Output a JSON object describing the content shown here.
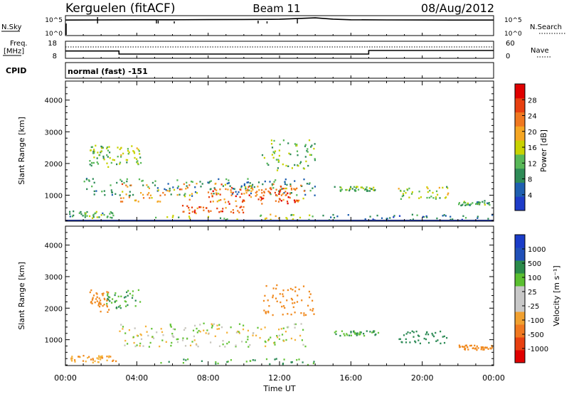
{
  "header": {
    "station": "Kerguelen (fitACF)",
    "beam": "Beam 11",
    "date": "08/Aug/2012"
  },
  "noise_panel": {
    "left_label": "N.Sky",
    "right_label": "N.Search",
    "left_ticks": [
      "10^5",
      "10^0"
    ],
    "right_ticks": [
      "10^5",
      "10^0"
    ]
  },
  "freq_panel": {
    "left_label_1": "Freq.",
    "left_label_2": "[MHz]",
    "right_label": "Nave",
    "left_ticks": [
      "18",
      "8"
    ],
    "right_ticks": [
      "60",
      "0"
    ]
  },
  "cpid": {
    "label": "CPID",
    "value": "normal (fast) -151"
  },
  "colors": {
    "power_scale": [
      "#1e3cc8",
      "#1f5fb0",
      "#2e8b57",
      "#58b858",
      "#c8d200",
      "#f5a623",
      "#f07820",
      "#e84010",
      "#e00000"
    ],
    "velocity_scale": [
      "#1a3cc8",
      "#2050b8",
      "#2a8a4a",
      "#5abf30",
      "#c8c8c8",
      "#c8c8c8",
      "#f0a030",
      "#f07820",
      "#e84010",
      "#e00000"
    ],
    "velocity_bg": "#c8c6be"
  },
  "chart_data": [
    {
      "type": "line",
      "name": "noise",
      "x_range": [
        0,
        24
      ],
      "y_scale": "log",
      "ylim": [
        1,
        100000
      ],
      "series": [
        {
          "name": "N.Sky",
          "x": [
            0,
            2,
            4,
            6,
            8,
            10,
            12,
            13,
            14,
            15,
            16,
            18,
            20,
            22,
            24
          ],
          "y": [
            10000,
            11000,
            12000,
            12000,
            13000,
            14000,
            16000,
            25000,
            40000,
            18000,
            12000,
            11000,
            10500,
            10000,
            10000
          ]
        }
      ]
    },
    {
      "type": "line",
      "name": "frequency",
      "x_range": [
        0,
        24
      ],
      "series": [
        {
          "name": "Freq",
          "x": [
            0,
            3.0,
            3.0,
            17.0,
            17.0,
            24
          ],
          "y": [
            12.3,
            12.3,
            10.5,
            10.5,
            12.6,
            12.6
          ]
        }
      ],
      "ylim": [
        8,
        18
      ]
    },
    {
      "type": "heatmap",
      "name": "power",
      "xlabel": "Time UT",
      "ylabel": "Slant Range [km]",
      "x_ticks": [
        "00:00",
        "04:00",
        "08:00",
        "12:00",
        "16:00",
        "20:00",
        "00:00"
      ],
      "x_tick_values": [
        0,
        4,
        8,
        12,
        16,
        20,
        24
      ],
      "y_ticks": [
        "1000",
        "2000",
        "3000",
        "4000"
      ],
      "y_tick_values": [
        1000,
        2000,
        3000,
        4000
      ],
      "ylim": [
        180,
        4600
      ],
      "xlim": [
        0,
        24
      ],
      "colorbar": {
        "label": "Power [dB]",
        "ticks": [
          "4",
          "8",
          "12",
          "16",
          "20",
          "24",
          "28"
        ],
        "tick_values": [
          4,
          8,
          12,
          16,
          20,
          24,
          28
        ],
        "range": [
          0,
          32
        ]
      },
      "regions": [
        {
          "t": [
            0.2,
            2.8
          ],
          "r": [
            300,
            520
          ],
          "v": 10
        },
        {
          "t": [
            1.3,
            2.4
          ],
          "r": [
            1900,
            2600
          ],
          "v": 12
        },
        {
          "t": [
            2.2,
            4.2
          ],
          "r": [
            2000,
            2600
          ],
          "v": 14
        },
        {
          "t": [
            1.0,
            14.0
          ],
          "r": [
            1000,
            1550
          ],
          "v": 8
        },
        {
          "t": [
            3.0,
            13.5
          ],
          "r": [
            800,
            1400
          ],
          "v": 22
        },
        {
          "t": [
            8.0,
            13.0
          ],
          "r": [
            750,
            1300
          ],
          "v": 28
        },
        {
          "t": [
            6.5,
            10.0
          ],
          "r": [
            450,
            700
          ],
          "v": 26
        },
        {
          "t": [
            11.0,
            14.0
          ],
          "r": [
            1800,
            2800
          ],
          "v": 12
        },
        {
          "t": [
            5.0,
            14.0
          ],
          "r": [
            200,
            420
          ],
          "v": 14
        },
        {
          "t": [
            14.0,
            24.0
          ],
          "r": [
            200,
            420
          ],
          "v": 6
        },
        {
          "t": [
            15.0,
            17.5
          ],
          "r": [
            1150,
            1300
          ],
          "v": 12
        },
        {
          "t": [
            18.5,
            21.5
          ],
          "r": [
            900,
            1300
          ],
          "v": 14
        },
        {
          "t": [
            22.0,
            24.0
          ],
          "r": [
            700,
            850
          ],
          "v": 10
        }
      ]
    },
    {
      "type": "heatmap",
      "name": "velocity",
      "xlabel": "Time UT",
      "ylabel": "Slant Range [km]",
      "x_ticks": [
        "00:00",
        "04:00",
        "08:00",
        "12:00",
        "16:00",
        "20:00",
        "00:00"
      ],
      "x_tick_values": [
        0,
        4,
        8,
        12,
        16,
        20,
        24
      ],
      "y_ticks": [
        "1000",
        "2000",
        "3000",
        "4000"
      ],
      "y_tick_values": [
        1000,
        2000,
        3000,
        4000
      ],
      "ylim": [
        180,
        4600
      ],
      "xlim": [
        0,
        24
      ],
      "colorbar": {
        "label": "Velocity [m s⁻¹]",
        "ticks": [
          "1000",
          "500",
          "100",
          "25",
          "-25",
          "-100",
          "-500",
          "-1000"
        ]
      },
      "regions": [
        {
          "t": [
            0.2,
            2.8
          ],
          "r": [
            300,
            520
          ],
          "v": -100
        },
        {
          "t": [
            1.3,
            2.4
          ],
          "r": [
            1900,
            2600
          ],
          "v": -200
        },
        {
          "t": [
            2.2,
            4.2
          ],
          "r": [
            2000,
            2600
          ],
          "v": 100
        },
        {
          "t": [
            3.0,
            13.5
          ],
          "r": [
            800,
            1550
          ],
          "v": 0
        },
        {
          "t": [
            11.0,
            14.0
          ],
          "r": [
            1800,
            2800
          ],
          "v": -200
        },
        {
          "t": [
            5.0,
            14.0
          ],
          "r": [
            200,
            420
          ],
          "v": 100
        },
        {
          "t": [
            15.0,
            17.5
          ],
          "r": [
            1150,
            1300
          ],
          "v": 100
        },
        {
          "t": [
            18.5,
            21.5
          ],
          "r": [
            900,
            1300
          ],
          "v": 200
        },
        {
          "t": [
            22.0,
            24.0
          ],
          "r": [
            700,
            850
          ],
          "v": -200
        }
      ]
    }
  ]
}
